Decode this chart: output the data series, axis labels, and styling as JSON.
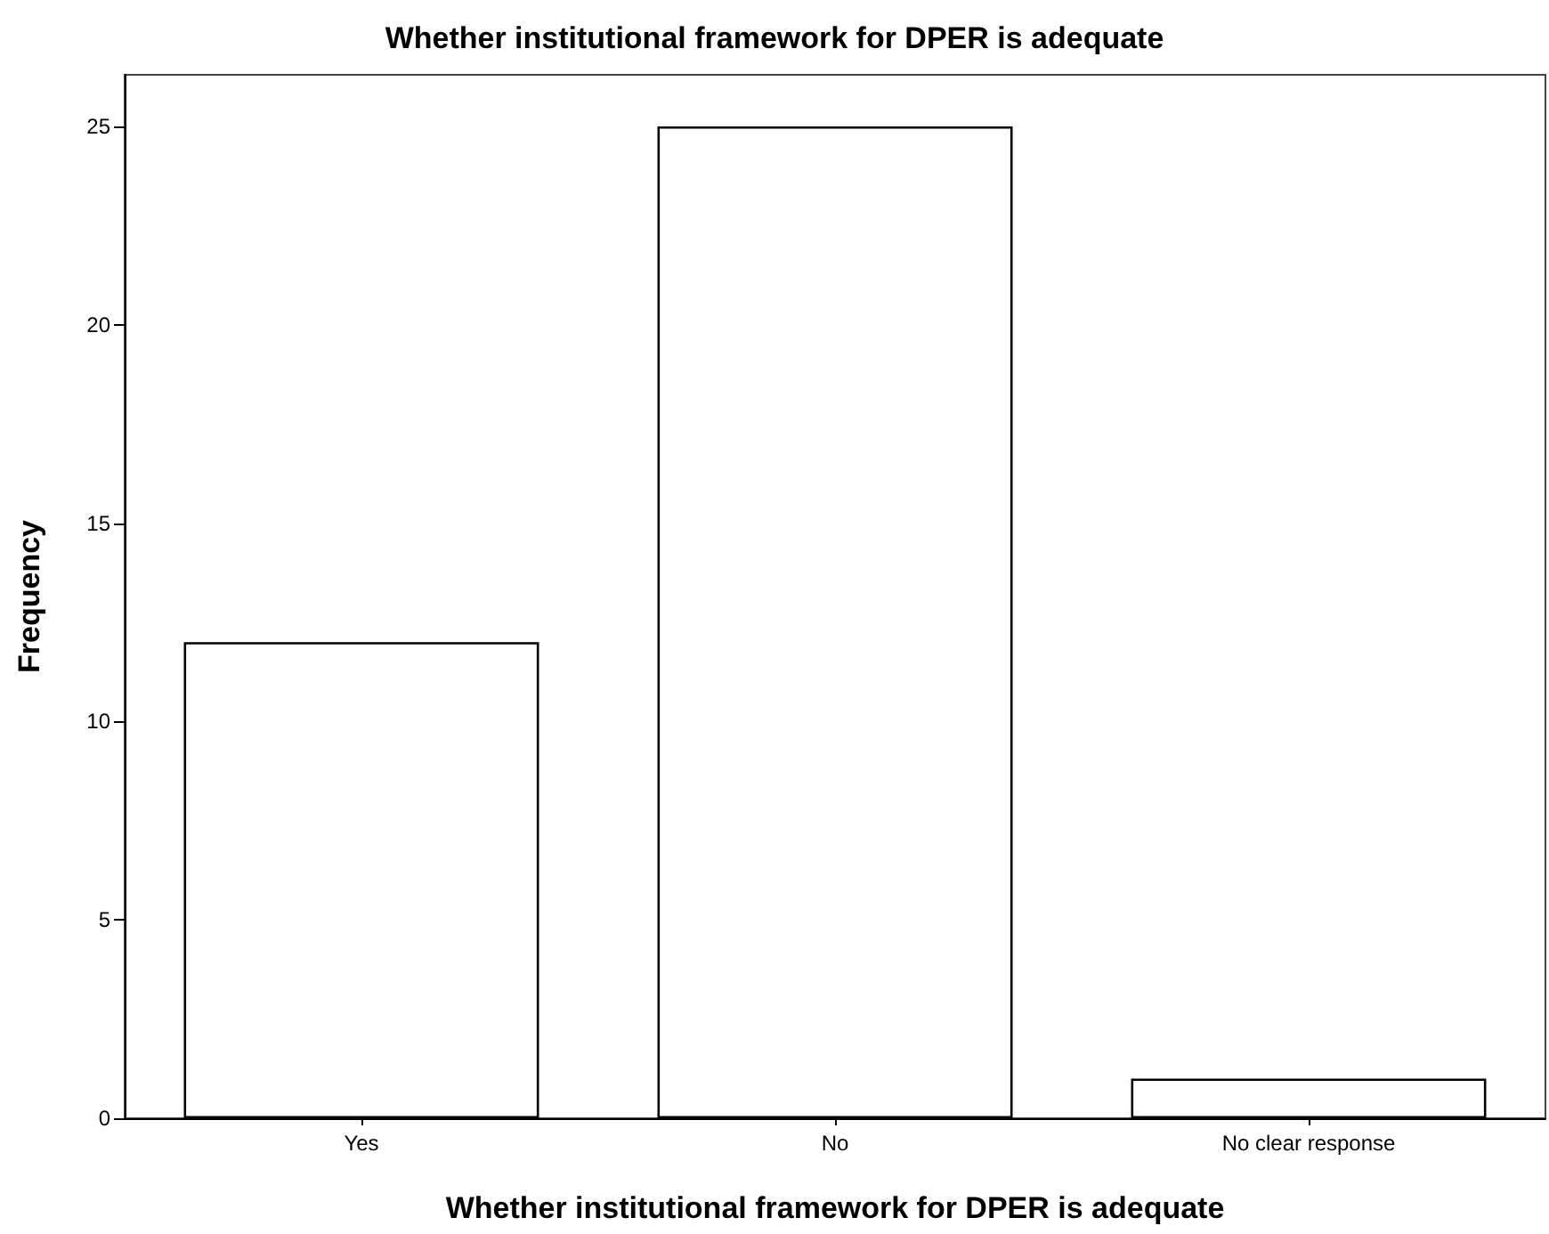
{
  "chart_data": {
    "type": "bar",
    "title": "Whether institutional framework for DPER is adequate",
    "xlabel": "Whether institutional framework for DPER is adequate",
    "ylabel": "Frequency",
    "categories": [
      "Yes",
      "No",
      "No clear response"
    ],
    "values": [
      12,
      25,
      1
    ],
    "color": "#ffffff",
    "ylim": [
      0,
      26.3
    ],
    "yticks": [
      0,
      5,
      10,
      15,
      20,
      25
    ]
  }
}
